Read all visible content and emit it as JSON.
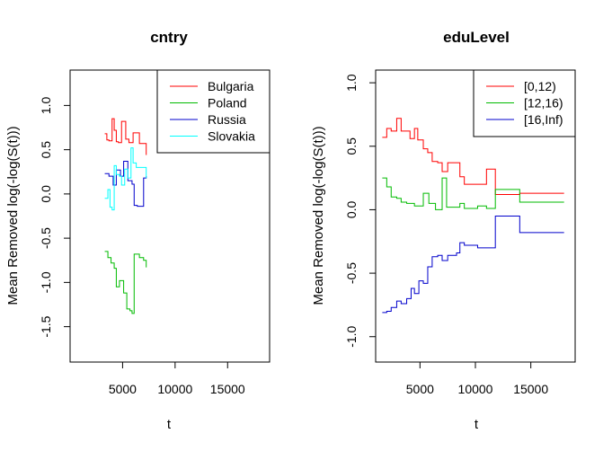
{
  "chart_data": [
    {
      "type": "line",
      "title": "cntry",
      "xlabel": "t",
      "ylabel": "Mean Removed log(-log(S(t)))",
      "xlim": [
        0,
        19000
      ],
      "ylim": [
        -1.9,
        1.4
      ],
      "xticks": [
        5000,
        10000,
        15000
      ],
      "yticks": [
        -1.5,
        -1.0,
        -0.5,
        0.0,
        0.5,
        1.0
      ],
      "ytick_labels": [
        "-1.5",
        "-1.0",
        "-0.5",
        "0.0",
        "0.5",
        "1.0"
      ],
      "legend_position": "top-right",
      "series": [
        {
          "name": "Bulgaria",
          "color": "#ff0000",
          "x": [
            3300,
            3500,
            3700,
            4000,
            4200,
            4400,
            4600,
            4900,
            5300,
            5600,
            6000,
            6600,
            7000,
            7250
          ],
          "y": [
            0.68,
            0.61,
            0.6,
            0.85,
            0.72,
            0.59,
            0.58,
            0.82,
            0.62,
            0.58,
            0.69,
            0.57,
            0.57,
            0.44
          ]
        },
        {
          "name": "Poland",
          "color": "#00bb00",
          "x": [
            3300,
            3600,
            3900,
            4200,
            4400,
            4700,
            5100,
            5400,
            5700,
            5900,
            6100,
            6600,
            7000,
            7250
          ],
          "y": [
            -0.65,
            -0.72,
            -0.78,
            -0.84,
            -1.05,
            -0.98,
            -1.12,
            -1.3,
            -1.32,
            -1.35,
            -0.68,
            -0.72,
            -0.75,
            -0.83
          ]
        },
        {
          "name": "Russia",
          "color": "#0000cc",
          "x": [
            3300,
            3700,
            4100,
            4400,
            4800,
            5100,
            5500,
            5900,
            6100,
            6400,
            7000,
            7250
          ],
          "y": [
            0.23,
            0.2,
            0.1,
            0.27,
            0.2,
            0.37,
            0.15,
            0.11,
            -0.13,
            -0.14,
            0.18,
            0.2
          ]
        },
        {
          "name": "Slovakia",
          "color": "#00ffff",
          "x": [
            3300,
            3600,
            3800,
            4000,
            4200,
            4400,
            4700,
            4900,
            5200,
            5500,
            5800,
            6000,
            6300,
            6700,
            7250
          ],
          "y": [
            -0.05,
            0.05,
            -0.15,
            -0.18,
            0.32,
            0.22,
            0.2,
            0.1,
            0.28,
            0.18,
            0.52,
            0.35,
            0.3,
            0.3,
            0.18
          ]
        }
      ]
    },
    {
      "type": "line",
      "title": "eduLevel",
      "xlabel": "t",
      "ylabel": "Mean Removed log(-log(S(t)))",
      "xlim": [
        1000,
        19000
      ],
      "ylim": [
        -1.2,
        1.1
      ],
      "xticks": [
        5000,
        10000,
        15000
      ],
      "yticks": [
        -1.0,
        -0.5,
        0.0,
        0.5,
        1.0
      ],
      "ytick_labels": [
        "-1.0",
        "-0.5",
        "0.0",
        "0.5",
        "1.0"
      ],
      "legend_position": "top-right",
      "series": [
        {
          "name": "[0,12)",
          "color": "#ff0000",
          "x": [
            1600,
            2000,
            2400,
            2900,
            3300,
            3600,
            4100,
            4500,
            4800,
            5300,
            5700,
            6100,
            6600,
            7000,
            7500,
            8600,
            9000,
            10200,
            11000,
            11800,
            14000,
            18000
          ],
          "y": [
            0.57,
            0.64,
            0.62,
            0.72,
            0.62,
            0.62,
            0.56,
            0.64,
            0.55,
            0.48,
            0.45,
            0.38,
            0.37,
            0.3,
            0.37,
            0.26,
            0.2,
            0.2,
            0.32,
            0.12,
            0.13,
            0.13
          ]
        },
        {
          "name": "[12,16)",
          "color": "#00bb00",
          "x": [
            1600,
            2000,
            2400,
            2900,
            3300,
            3800,
            4500,
            5300,
            5800,
            6400,
            7000,
            7400,
            8600,
            9000,
            10200,
            11000,
            11800,
            14000,
            18000
          ],
          "y": [
            0.25,
            0.18,
            0.1,
            0.09,
            0.06,
            0.05,
            0.03,
            0.13,
            0.05,
            0.0,
            0.25,
            0.02,
            0.05,
            0.01,
            0.03,
            0.01,
            0.16,
            0.06,
            0.06
          ]
        },
        {
          "name": "[16,Inf)",
          "color": "#0000cc",
          "x": [
            1600,
            2000,
            2400,
            2900,
            3300,
            3800,
            4200,
            4500,
            4900,
            5300,
            5700,
            6100,
            6600,
            7000,
            7500,
            8300,
            8600,
            9000,
            10200,
            11800,
            14000,
            18000
          ],
          "y": [
            -0.81,
            -0.8,
            -0.77,
            -0.72,
            -0.74,
            -0.7,
            -0.62,
            -0.66,
            -0.56,
            -0.58,
            -0.45,
            -0.37,
            -0.36,
            -0.4,
            -0.36,
            -0.34,
            -0.26,
            -0.28,
            -0.3,
            -0.05,
            -0.18,
            -0.18
          ]
        }
      ]
    }
  ]
}
